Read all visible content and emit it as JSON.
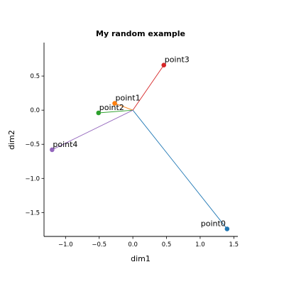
{
  "chart_data": {
    "type": "scatter",
    "title": "My random example",
    "xlabel": "dim1",
    "ylabel": "dim2",
    "xlim": [
      -1.32,
      1.56
    ],
    "ylim": [
      -1.85,
      0.99
    ],
    "xticks": [
      -1.0,
      -0.5,
      0.0,
      0.5,
      1.0,
      1.5
    ],
    "xtick_labels": [
      "−1.0",
      "−0.5",
      "0.0",
      "0.5",
      "1.0",
      "1.5"
    ],
    "yticks": [
      0.5,
      0.0,
      -0.5,
      -1.0,
      -1.5
    ],
    "ytick_labels": [
      "0.5",
      "0.0",
      "−0.5",
      "−1.0",
      "−1.5"
    ],
    "grid": false,
    "origin": [
      0,
      0
    ],
    "points": [
      {
        "label": "point0",
        "x": 1.4,
        "y": -1.74,
        "color": "#1f77b4",
        "label_anchor": "end"
      },
      {
        "label": "point1",
        "x": -0.27,
        "y": 0.1,
        "color": "#ff7f0e",
        "label_anchor": "start"
      },
      {
        "label": "point2",
        "x": -0.51,
        "y": -0.04,
        "color": "#2ca02c",
        "label_anchor": "start"
      },
      {
        "label": "point3",
        "x": 0.46,
        "y": 0.66,
        "color": "#d62728",
        "label_anchor": "start"
      },
      {
        "label": "point4",
        "x": -1.2,
        "y": -0.58,
        "color": "#9467bd",
        "label_anchor": "start"
      }
    ]
  }
}
